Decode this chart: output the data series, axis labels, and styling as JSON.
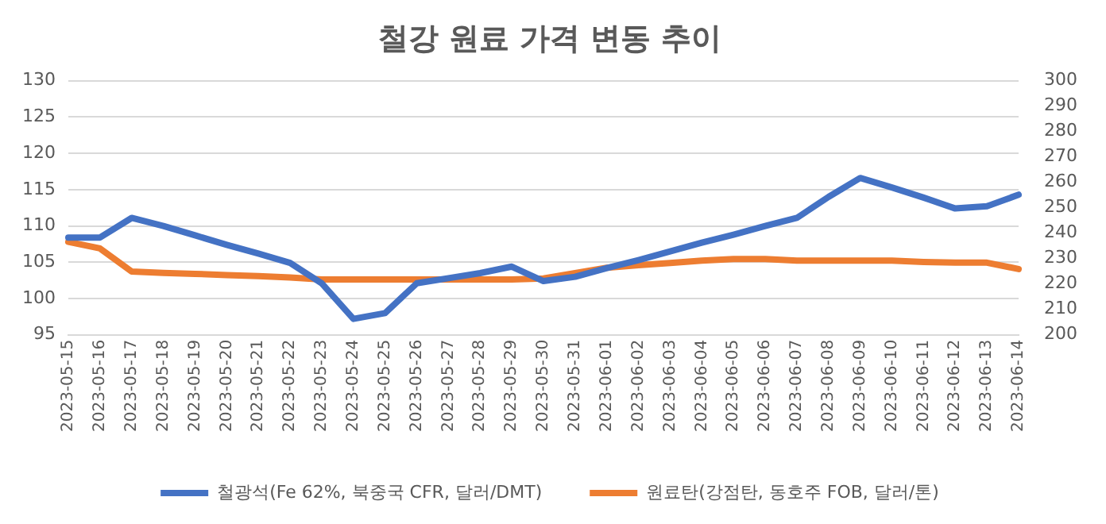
{
  "chart_data": {
    "type": "line",
    "title": "철강 원료 가격 변동 추이",
    "categories": [
      "2023-05-15",
      "2023-05-16",
      "2023-05-17",
      "2023-05-18",
      "2023-05-19",
      "2023-05-20",
      "2023-05-21",
      "2023-05-22",
      "2023-05-23",
      "2023-05-24",
      "2023-05-25",
      "2023-05-26",
      "2023-05-27",
      "2023-05-28",
      "2023-05-29",
      "2023-05-30",
      "2023-05-31",
      "2023-06-01",
      "2023-06-02",
      "2023-06-03",
      "2023-06-04",
      "2023-06-05",
      "2023-06-06",
      "2023-06-07",
      "2023-06-08",
      "2023-06-09",
      "2023-06-10",
      "2023-06-11",
      "2023-06-12",
      "2023-06-13",
      "2023-06-14"
    ],
    "series": [
      {
        "name": "철광석(Fe 62%, 북중국 CFR, 달러/DMT)",
        "color": "#4472c4",
        "values": [
          108.4,
          108.4,
          111.1,
          110,
          108.7,
          107.4,
          106.2,
          104.9,
          102.1,
          97.2,
          98,
          102.1,
          102.8,
          103.5,
          104.4,
          102.4,
          103,
          104.2,
          105.3,
          106.5,
          107.7,
          108.8,
          110,
          111.1,
          114,
          116.6,
          115.3,
          113.9,
          112.4,
          112.7,
          114.3
        ]
      },
      {
        "name": "원료탄(강점탄, 동호주 FOB, 달러/톤)",
        "color": "#ed7d31",
        "axis": "y2",
        "values": [
          236.6,
          234,
          224.9,
          224.4,
          224,
          223.5,
          223.1,
          222.6,
          221.8,
          221.8,
          221.8,
          221.8,
          221.8,
          221.8,
          221.8,
          222.2,
          224.3,
          226.4,
          227.4,
          228.3,
          229.2,
          229.8,
          229.8,
          229.2,
          229.2,
          229.2,
          229.2,
          228.7,
          228.4,
          228.4,
          225.9
        ]
      }
    ],
    "ylim": [
      95,
      130
    ],
    "yticks": [
      95,
      100,
      105,
      110,
      115,
      120,
      125,
      130
    ],
    "y2lim": [
      200,
      300
    ],
    "y2ticks": [
      200,
      210,
      220,
      230,
      240,
      250,
      260,
      270,
      280,
      290,
      300
    ],
    "grid": "y",
    "legend": "bottom",
    "marker": "none",
    "line_style": "solid"
  }
}
